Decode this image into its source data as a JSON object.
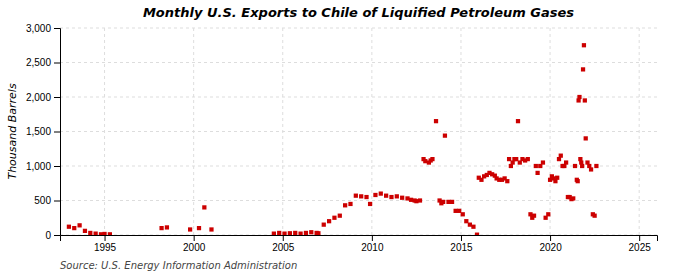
{
  "chart_data": {
    "type": "scatter",
    "title": "Monthly U.S. Exports to Chile of Liquified Petroleum Gases",
    "ylabel": "Thousand Barrels",
    "source": "Source: U.S. Energy Information Administration",
    "color": "#cc0000",
    "marker": "square",
    "grid": true,
    "xlim": [
      1992.5,
      2026
    ],
    "ylim": [
      0,
      3000
    ],
    "xticks": [
      1995,
      2000,
      2005,
      2010,
      2015,
      2020,
      2025
    ],
    "yticks": [
      0,
      500,
      {
        "value": 1000,
        "label": "1,000"
      },
      {
        "value": 1500,
        "label": "1,500"
      },
      {
        "value": 2000,
        "label": "2,000"
      },
      {
        "value": 2500,
        "label": "2,500"
      },
      {
        "value": 3000,
        "label": "3,000"
      }
    ],
    "x": [
      1993.0,
      1993.3,
      1993.6,
      1993.9,
      1994.2,
      1994.5,
      1994.8,
      1995.0,
      1995.3,
      1998.2,
      1998.5,
      1999.8,
      2000.3,
      2000.6,
      2001.0,
      2004.5,
      2004.8,
      2005.1,
      2005.4,
      2005.7,
      2006.0,
      2006.3,
      2006.6,
      2006.9,
      2007.0,
      2007.3,
      2007.6,
      2007.9,
      2008.2,
      2008.5,
      2008.8,
      2009.1,
      2009.4,
      2009.7,
      2009.9,
      2010.2,
      2010.5,
      2010.8,
      2011.1,
      2011.4,
      2011.7,
      2012.0,
      2012.2,
      2012.4,
      2012.5,
      2012.7,
      2012.9,
      2013.0,
      2013.2,
      2013.3,
      2013.4,
      2013.6,
      2013.8,
      2013.9,
      2014.0,
      2014.1,
      2014.3,
      2014.5,
      2014.7,
      2014.9,
      2015.1,
      2015.3,
      2015.5,
      2015.7,
      2015.9,
      2016.0,
      2016.15,
      2016.3,
      2016.45,
      2016.6,
      2016.75,
      2016.9,
      2017.0,
      2017.15,
      2017.3,
      2017.45,
      2017.6,
      2017.7,
      2017.8,
      2017.9,
      2018.0,
      2018.1,
      2018.2,
      2018.3,
      2018.45,
      2018.6,
      2018.75,
      2018.9,
      2019.0,
      2019.1,
      2019.2,
      2019.3,
      2019.45,
      2019.6,
      2019.75,
      2019.9,
      2020.0,
      2020.1,
      2020.2,
      2020.3,
      2020.4,
      2020.5,
      2020.6,
      2020.7,
      2020.8,
      2020.9,
      2021.0,
      2021.1,
      2021.2,
      2021.3,
      2021.4,
      2021.5,
      2021.55,
      2021.6,
      2021.65,
      2021.7,
      2021.75,
      2021.8,
      2021.85,
      2021.9,
      2021.95,
      2022.0,
      2022.1,
      2022.2,
      2022.3,
      2022.4,
      2022.5,
      2022.6
    ],
    "values": [
      120,
      100,
      140,
      60,
      30,
      20,
      10,
      15,
      10,
      100,
      110,
      80,
      100,
      400,
      80,
      20,
      30,
      20,
      25,
      30,
      20,
      30,
      40,
      30,
      25,
      150,
      200,
      250,
      280,
      430,
      450,
      570,
      560,
      550,
      450,
      580,
      600,
      570,
      550,
      560,
      540,
      530,
      510,
      500,
      490,
      500,
      1100,
      1070,
      1050,
      1080,
      1100,
      1650,
      500,
      460,
      480,
      1440,
      480,
      480,
      350,
      350,
      300,
      200,
      150,
      120,
      5,
      830,
      800,
      850,
      870,
      900,
      880,
      860,
      820,
      800,
      800,
      820,
      780,
      1100,
      1000,
      1050,
      1100,
      1100,
      1650,
      1050,
      1100,
      1080,
      1100,
      300,
      250,
      280,
      1000,
      900,
      1000,
      1050,
      250,
      300,
      800,
      850,
      820,
      780,
      830,
      1100,
      1150,
      1000,
      1000,
      1050,
      550,
      550,
      520,
      530,
      1000,
      800,
      780,
      1950,
      2000,
      1100,
      1050,
      1000,
      2400,
      2750,
      1950,
      1400,
      1050,
      1000,
      950,
      300,
      280,
      1000
    ]
  }
}
